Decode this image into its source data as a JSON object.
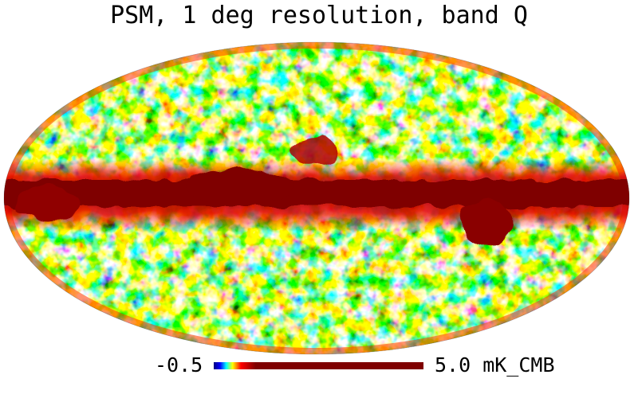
{
  "title": "PSM, 1 deg resolution, band Q",
  "projection": "mollweide",
  "colormap": {
    "name": "jet",
    "stops": [
      "#00007f",
      "#0000ff",
      "#00ffff",
      "#ffff00",
      "#ff0000",
      "#7f0000"
    ]
  },
  "colorbar": {
    "min_label": "-0.5",
    "max_label": "5.0 mK_CMB"
  }
}
